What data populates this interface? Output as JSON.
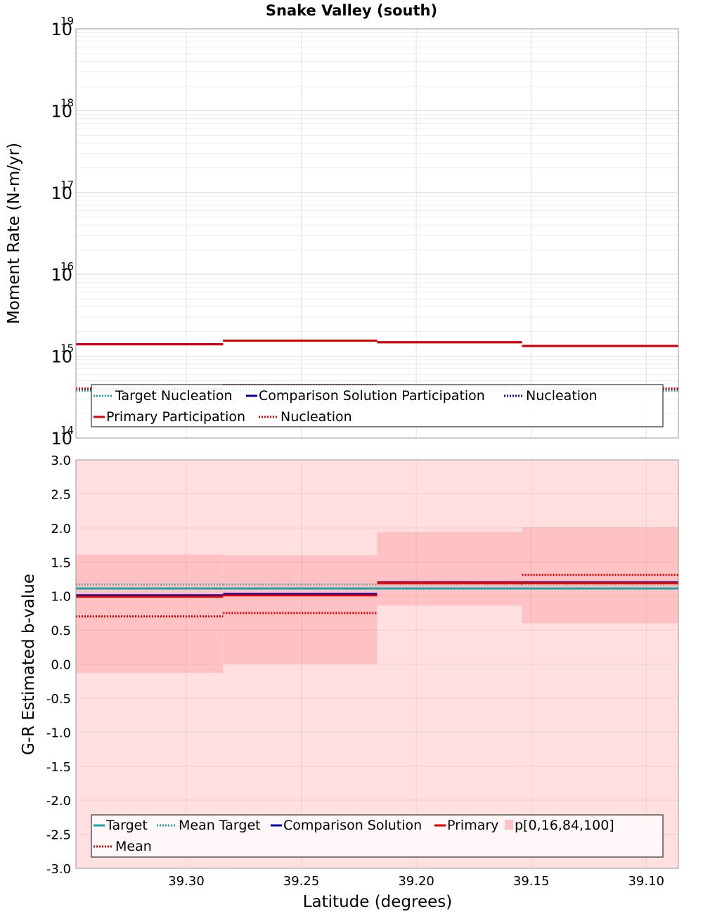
{
  "title": "Snake Valley (south)",
  "xlabel": "Latitude (degrees)",
  "x_ticks": [
    "39.30",
    "39.25",
    "39.20",
    "39.15",
    "39.10"
  ],
  "colors": {
    "target": "#1aa6a6",
    "comparison": "#0000b0",
    "primary": "#e00000",
    "band_outer": "#ffdfe0",
    "band_inner": "#ffc2c4",
    "mean_target": "#7aa0a0"
  },
  "chart_data": [
    {
      "type": "line",
      "title": "Snake Valley (south)",
      "xlabel": "Latitude (degrees)",
      "ylabel": "Moment Rate (N-m/yr)",
      "yscale": "log",
      "xlim": [
        39.348,
        39.086
      ],
      "ylim": [
        100000000000000.0,
        1e+19
      ],
      "y_tick_bases": [
        "10",
        "10",
        "10",
        "10",
        "10",
        "10"
      ],
      "y_tick_exponents": [
        "14",
        "15",
        "16",
        "17",
        "18",
        "19"
      ],
      "grid": true,
      "legend_position": "bottom",
      "legend": [
        "Target Nucleation",
        "Comparison Solution Participation",
        "Nucleation",
        "Primary Participation",
        "Nucleation"
      ],
      "segments": [
        {
          "x_start": 39.348,
          "x_end": 39.284
        },
        {
          "x_start": 39.284,
          "x_end": 39.217
        },
        {
          "x_start": 39.217,
          "x_end": 39.154
        },
        {
          "x_start": 39.154,
          "x_end": 39.086
        }
      ],
      "series": [
        {
          "name": "Target Nucleation",
          "style": "dotted",
          "color": "#1aa6a6",
          "values": [
            380000000000000.0,
            380000000000000.0,
            380000000000000.0,
            380000000000000.0
          ]
        },
        {
          "name": "Comparison Solution Participation",
          "style": "solid",
          "color": "#0000b0",
          "values": [
            1400000000000000.0,
            1550000000000000.0,
            1480000000000000.0,
            1330000000000000.0
          ]
        },
        {
          "name": "Nucleation",
          "style": "dotted",
          "color": "#0000b0",
          "values": [
            400000000000000.0,
            445000000000000.0,
            440000000000000.0,
            400000000000000.0
          ]
        },
        {
          "name": "Primary Participation",
          "style": "solid",
          "color": "#e00000",
          "values": [
            1400000000000000.0,
            1550000000000000.0,
            1480000000000000.0,
            1330000000000000.0
          ]
        },
        {
          "name": "Nucleation",
          "style": "dotted",
          "color": "#e00000",
          "values": [
            400000000000000.0,
            445000000000000.0,
            440000000000000.0,
            400000000000000.0
          ]
        }
      ]
    },
    {
      "type": "line",
      "xlabel": "Latitude (degrees)",
      "ylabel": "G-R Estimated b-value",
      "xlim": [
        39.348,
        39.086
      ],
      "ylim": [
        -3.0,
        3.0
      ],
      "y_ticks": [
        "-3.0",
        "-2.5",
        "-2.0",
        "-1.5",
        "-1.0",
        "-0.5",
        "0.0",
        "0.5",
        "1.0",
        "1.5",
        "2.0",
        "2.5",
        "3.0"
      ],
      "grid": true,
      "legend_position": "bottom",
      "legend": [
        "Target",
        "Mean Target",
        "Comparison Solution",
        "Primary",
        "p[0,16,84,100]",
        "Mean"
      ],
      "segments": [
        {
          "x_start": 39.348,
          "x_end": 39.284
        },
        {
          "x_start": 39.284,
          "x_end": 39.217
        },
        {
          "x_start": 39.217,
          "x_end": 39.154
        },
        {
          "x_start": 39.154,
          "x_end": 39.086
        }
      ],
      "series": [
        {
          "name": "Target",
          "style": "solid",
          "color": "#1aa6a6",
          "values": [
            1.11,
            1.11,
            1.11,
            1.11
          ]
        },
        {
          "name": "Mean Target",
          "style": "dotted",
          "color": "#7aa0a0",
          "values": [
            1.17,
            1.17,
            1.17,
            1.17
          ]
        },
        {
          "name": "Comparison Solution",
          "style": "solid",
          "color": "#0000b0",
          "values": [
            1.01,
            1.03,
            1.2,
            1.2
          ]
        },
        {
          "name": "Primary",
          "style": "solid",
          "color": "#e00000",
          "values": [
            0.99,
            1.01,
            1.19,
            1.19
          ]
        },
        {
          "name": "Mean",
          "style": "dotted",
          "color": "#e00000",
          "values": [
            0.7,
            0.75,
            1.2,
            1.31
          ]
        }
      ],
      "bands": {
        "name": "p[0,16,84,100]",
        "p0": [
          -3.0,
          -3.0,
          -3.0,
          -3.0
        ],
        "p16": [
          -0.13,
          0.0,
          0.86,
          0.6
        ],
        "p84": [
          1.61,
          1.6,
          1.94,
          2.01
        ],
        "p100": [
          3.0,
          3.0,
          3.0,
          3.0
        ]
      }
    }
  ]
}
